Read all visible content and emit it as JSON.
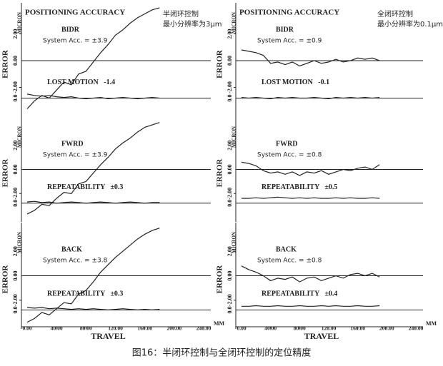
{
  "caption": "图16：半闭环控制与全闭环控制的定位精度",
  "chart_data": [
    {
      "type": "line",
      "title": "POSITIONING ACCURACY",
      "notes": [
        "半闭环控制",
        "最小分辨率为3μm"
      ],
      "labels": {
        "mode": "BIDR",
        "accuracy": "System Acc. = ±3.9",
        "lower": "LOST MOTION   -1.4"
      },
      "ylabel": "ERROR",
      "y_unit": "MICRON",
      "xlim": [
        0,
        240
      ],
      "ylim": [
        -4,
        4
      ],
      "y2lim": [
        -1.2,
        6.8
      ],
      "yticks": [
        {
          "value": 2,
          "label": "2.00"
        },
        {
          "value": 0,
          "label": "0.00"
        },
        {
          "value": -2,
          "label": "-2.00"
        }
      ],
      "y2ticks": [
        {
          "value": 0,
          "label": "0.0"
        }
      ],
      "x": [
        0,
        10,
        20,
        30,
        40,
        50,
        60,
        70,
        80,
        90,
        100,
        110,
        120,
        130,
        140,
        150,
        160,
        170,
        180
      ],
      "series": [
        {
          "color": "#222",
          "values": [
            -3.6,
            -3.0,
            -2.6,
            -2.8,
            -2.2,
            -1.6,
            -1.8,
            -1.0,
            -0.8,
            -0.1,
            0.6,
            1.2,
            1.9,
            2.3,
            2.8,
            3.2,
            3.5,
            3.8,
            3.95
          ]
        },
        {
          "color": "#222",
          "axis": "y2",
          "values": [
            0.3,
            0.2,
            0.15,
            0.2,
            0.1,
            0.05,
            0.1,
            0.0,
            -0.05,
            0.0,
            0.05,
            -0.05,
            0.0,
            0.05,
            0.0,
            -0.05,
            0.0,
            0.05,
            0.0
          ]
        }
      ]
    },
    {
      "type": "line",
      "labels": {
        "mode": "FWRD",
        "accuracy": "System Acc. = ±3.9",
        "lower": "REPEATABILITY   ±0.3"
      },
      "ylabel": "ERROR",
      "y_unit": "MICRON",
      "xlim": [
        0,
        240
      ],
      "ylim": [
        -4,
        4
      ],
      "y2lim": [
        -1.2,
        6.8
      ],
      "yticks": [
        {
          "value": 2,
          "label": "2.00"
        },
        {
          "value": 0,
          "label": "0.00"
        },
        {
          "value": -2,
          "label": "-2.00"
        }
      ],
      "y2ticks": [
        {
          "value": 0,
          "label": "0.0"
        }
      ],
      "x": [
        0,
        10,
        20,
        30,
        40,
        50,
        60,
        70,
        80,
        90,
        100,
        110,
        120,
        130,
        140,
        150,
        160,
        170,
        180
      ],
      "series": [
        {
          "color": "#222",
          "values": [
            -3.7,
            -3.4,
            -2.9,
            -3.0,
            -2.4,
            -1.9,
            -2.0,
            -1.2,
            -1.0,
            -0.3,
            0.4,
            1.0,
            1.7,
            2.2,
            2.6,
            3.1,
            3.5,
            3.7,
            3.9
          ]
        },
        {
          "color": "#222",
          "axis": "y2",
          "values": [
            0.1,
            0.15,
            0.05,
            0.1,
            0.0,
            0.05,
            0.1,
            0.05,
            0.0,
            0.05,
            0.1,
            0.05,
            0.0,
            0.05,
            0.1,
            0.05,
            0.0,
            0.05,
            0.05
          ]
        }
      ]
    },
    {
      "type": "line",
      "labels": {
        "mode": "BACK",
        "accuracy": "System Acc. = ±3.8",
        "lower": "REPEATABILITY   ±0.3"
      },
      "ylabel": "ERROR",
      "y_unit": "MICRON",
      "xlabel": "TRAVEL",
      "x_unit": "MM",
      "xlim": [
        0,
        240
      ],
      "ylim": [
        -4,
        4
      ],
      "y2lim": [
        -1.2,
        6.8
      ],
      "xticks": [
        {
          "value": 0,
          "label": "0.00"
        },
        {
          "value": 40,
          "label": "40.00"
        },
        {
          "value": 80,
          "label": "80.00"
        },
        {
          "value": 120,
          "label": "120.00"
        },
        {
          "value": 160,
          "label": "160.00"
        },
        {
          "value": 200,
          "label": "200.00"
        },
        {
          "value": 240,
          "label": "240.00"
        }
      ],
      "yticks": [
        {
          "value": 2,
          "label": "2.00"
        },
        {
          "value": 0,
          "label": "0.00"
        },
        {
          "value": -2,
          "label": "-2.00"
        }
      ],
      "y2ticks": [
        {
          "value": 0,
          "label": "0.0"
        }
      ],
      "x": [
        0,
        10,
        20,
        30,
        40,
        50,
        60,
        70,
        80,
        90,
        100,
        110,
        120,
        130,
        140,
        150,
        160,
        170,
        180
      ],
      "series": [
        {
          "color": "#222",
          "values": [
            -3.8,
            -3.5,
            -3.0,
            -3.2,
            -2.7,
            -2.2,
            -2.3,
            -1.5,
            -1.2,
            -0.5,
            0.3,
            0.9,
            1.5,
            2.0,
            2.5,
            3.0,
            3.4,
            3.7,
            3.9
          ]
        },
        {
          "color": "#222",
          "axis": "y2",
          "values": [
            0.2,
            0.15,
            0.2,
            0.1,
            0.15,
            0.1,
            0.05,
            0.1,
            0.05,
            0.1,
            0.05,
            0.0,
            0.05,
            0.1,
            0.05,
            0.0,
            0.05,
            0.0,
            0.05
          ]
        }
      ]
    },
    {
      "type": "line",
      "title": "POSITIONING ACCURACY",
      "notes": [
        "全闭环控制",
        "最小分辨率为0.1μm"
      ],
      "labels": {
        "mode": "BIDR",
        "accuracy": "System Acc. = ±0.9",
        "lower": "LOST MOTION   -0.1"
      },
      "ylabel": "ERROR",
      "y_unit": "MICRON",
      "xlim": [
        0,
        240
      ],
      "ylim": [
        -4,
        4
      ],
      "y2lim": [
        -1.2,
        6.8
      ],
      "yticks": [
        {
          "value": 2,
          "label": "2.00"
        },
        {
          "value": 0,
          "label": "0.00"
        },
        {
          "value": -2,
          "label": "-2.00"
        }
      ],
      "y2ticks": [
        {
          "value": 0,
          "label": "0.0"
        }
      ],
      "x": [
        0,
        10,
        20,
        30,
        40,
        50,
        60,
        70,
        80,
        90,
        100,
        110,
        120,
        130,
        140,
        150,
        160,
        170,
        180,
        190
      ],
      "series": [
        {
          "color": "#222",
          "values": [
            0.8,
            0.7,
            0.6,
            0.4,
            -0.2,
            -0.1,
            -0.3,
            -0.1,
            -0.4,
            -0.2,
            0.0,
            -0.2,
            -0.1,
            0.1,
            -0.1,
            0.0,
            0.2,
            0.1,
            0.2,
            0.0
          ]
        },
        {
          "color": "#222",
          "axis": "y2",
          "values": [
            0.05,
            0.0,
            0.05,
            0.0,
            -0.05,
            0.05,
            0.0,
            0.05,
            0.0,
            0.0,
            0.05,
            0.0,
            -0.05,
            0.05,
            0.0,
            0.05,
            0.0,
            0.05,
            0.0,
            0.05
          ]
        }
      ]
    },
    {
      "type": "line",
      "labels": {
        "mode": "FWRD",
        "accuracy": "System Acc. = ±0.8",
        "lower": "REPEATABILITY   ±0.5"
      },
      "ylabel": "ERROR",
      "y_unit": "MICRON",
      "xlim": [
        0,
        240
      ],
      "ylim": [
        -4,
        4
      ],
      "y2lim": [
        -1.2,
        6.8
      ],
      "yticks": [
        {
          "value": 2,
          "label": "2.00"
        },
        {
          "value": 0,
          "label": "0.00"
        },
        {
          "value": -2,
          "label": "-2.00"
        }
      ],
      "y2ticks": [
        {
          "value": 0,
          "label": "0.0"
        }
      ],
      "x": [
        0,
        10,
        20,
        30,
        40,
        50,
        60,
        70,
        80,
        90,
        100,
        110,
        120,
        130,
        140,
        150,
        160,
        170,
        180,
        190
      ],
      "series": [
        {
          "color": "#222",
          "values": [
            0.6,
            0.5,
            0.3,
            -0.1,
            -0.3,
            -0.2,
            -0.4,
            -0.2,
            -0.5,
            -0.2,
            -0.3,
            -0.1,
            -0.4,
            -0.2,
            0.0,
            -0.1,
            0.1,
            0.2,
            0.0,
            0.4
          ]
        },
        {
          "color": "#222",
          "axis": "y2",
          "values": [
            0.4,
            0.4,
            0.45,
            0.4,
            0.45,
            0.5,
            0.45,
            0.4,
            0.45,
            0.4,
            0.45,
            0.4,
            0.4,
            0.45,
            0.4,
            0.45,
            0.4,
            0.4,
            0.45,
            0.4
          ]
        }
      ]
    },
    {
      "type": "line",
      "labels": {
        "mode": "BACK",
        "accuracy": "System Acc. = ±0.8",
        "lower": "REPEATABILITY   ±0.4"
      },
      "ylabel": "ERROR",
      "y_unit": "MICRON",
      "xlabel": "TRAVEL",
      "x_unit": "MM",
      "xlim": [
        0,
        240
      ],
      "ylim": [
        -4,
        4
      ],
      "y2lim": [
        -1.2,
        6.8
      ],
      "xticks": [
        {
          "value": 0,
          "label": "0.00"
        },
        {
          "value": 40,
          "label": "40.00"
        },
        {
          "value": 80,
          "label": "80.00"
        },
        {
          "value": 120,
          "label": "120.00"
        },
        {
          "value": 160,
          "label": "160.00"
        },
        {
          "value": 200,
          "label": "200.00"
        },
        {
          "value": 240,
          "label": "240.00"
        }
      ],
      "yticks": [
        {
          "value": 2,
          "label": "2.00"
        },
        {
          "value": 0,
          "label": "0.00"
        },
        {
          "value": -2,
          "label": "-2.00"
        }
      ],
      "y2ticks": [
        {
          "value": 0,
          "label": "0.0"
        }
      ],
      "x": [
        0,
        10,
        20,
        30,
        40,
        50,
        60,
        70,
        80,
        90,
        100,
        110,
        120,
        130,
        140,
        150,
        160,
        170,
        180,
        190
      ],
      "series": [
        {
          "color": "#222",
          "values": [
            0.8,
            0.5,
            0.3,
            0.0,
            -0.4,
            -0.2,
            -0.3,
            -0.1,
            -0.5,
            -0.2,
            -0.1,
            -0.4,
            -0.2,
            0.0,
            -0.2,
            0.1,
            0.2,
            0.0,
            0.2,
            -0.1
          ]
        },
        {
          "color": "#222",
          "axis": "y2",
          "values": [
            0.3,
            0.3,
            0.35,
            0.3,
            0.3,
            0.35,
            0.3,
            0.3,
            0.35,
            0.3,
            0.3,
            0.35,
            0.3,
            0.35,
            0.3,
            0.3,
            0.35,
            0.3,
            0.3,
            0.35
          ]
        }
      ]
    }
  ]
}
